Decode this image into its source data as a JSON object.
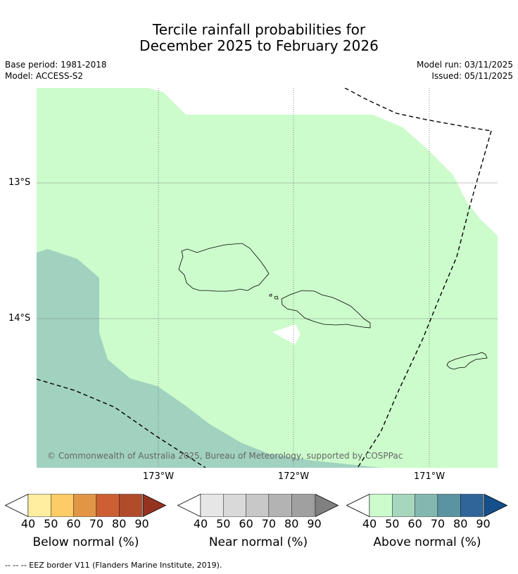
{
  "title": {
    "line1": "Tercile rainfall probabilities for",
    "line2": "December 2025 to February 2026"
  },
  "meta": {
    "base_period": "Base period: 1981-2018",
    "model": "Model: ACCESS-S2",
    "model_run": "Model run: 03/11/2025",
    "issued": "Issued: 05/11/2025"
  },
  "map": {
    "lat_labels": [
      "13°S",
      "14°S"
    ],
    "lon_labels": [
      "173°W",
      "172°W",
      "171°W"
    ],
    "copyright": "© Commonwealth of Australia 2025, Bureau of Meteorology, supported by COSPPac",
    "colors": {
      "above_40_50": "#ccfccc",
      "above_50_60": "#a1d2bf",
      "land_outline": "#000000",
      "eez_line": "#000000"
    }
  },
  "legends": [
    {
      "label": "Below normal (%)",
      "ticks": [
        "40",
        "50",
        "60",
        "70",
        "80",
        "90"
      ],
      "colors": [
        "#ffffff",
        "#ffeda0",
        "#fecc66",
        "#e19545",
        "#cc6033",
        "#b04c2a",
        "#963220"
      ]
    },
    {
      "label": "Near normal (%)",
      "ticks": [
        "40",
        "50",
        "60",
        "70",
        "80",
        "90"
      ],
      "colors": [
        "#ffffff",
        "#e6e6e6",
        "#d9d9d9",
        "#c8c8c8",
        "#b3b3b3",
        "#a0a0a0",
        "#808080"
      ]
    },
    {
      "label": "Above normal (%)",
      "ticks": [
        "40",
        "50",
        "60",
        "70",
        "80",
        "90"
      ],
      "colors": [
        "#ffffff",
        "#ccfccc",
        "#a6d6bc",
        "#84b8af",
        "#5a93a2",
        "#2f6699",
        "#154f8c"
      ]
    }
  ],
  "footer": "--  --  -- EEZ border V11 (Flanders Marine Institute, 2019)."
}
